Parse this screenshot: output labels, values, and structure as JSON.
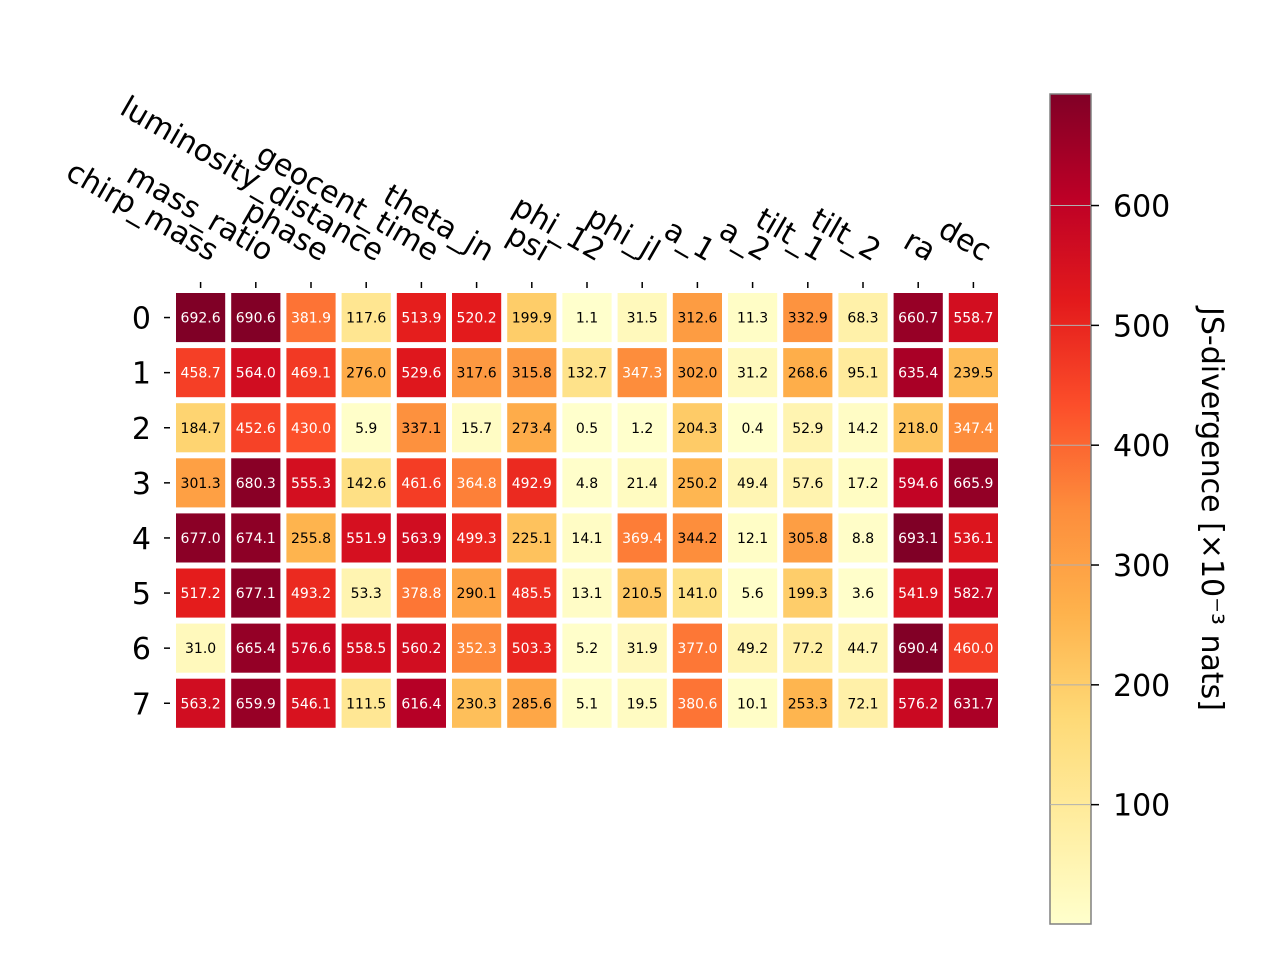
{
  "chart_data": {
    "type": "heatmap",
    "title": "",
    "xlabel": "",
    "ylabel": "",
    "x_labels": [
      "chirp_mass",
      "mass_ratio",
      "phase",
      "luminosity_distance",
      "geocent_time",
      "theta_jn",
      "psi",
      "phi_12",
      "phi_jl",
      "a_1",
      "a_2",
      "tilt_1",
      "tilt_2",
      "ra",
      "dec"
    ],
    "y_labels": [
      "0",
      "1",
      "2",
      "3",
      "4",
      "5",
      "6",
      "7"
    ],
    "values": [
      [
        692.6,
        690.6,
        381.9,
        117.6,
        513.9,
        520.2,
        199.9,
        1.1,
        31.5,
        312.6,
        11.3,
        332.9,
        68.3,
        660.7,
        558.7
      ],
      [
        458.7,
        564.0,
        469.1,
        276.0,
        529.6,
        317.6,
        315.8,
        132.7,
        347.3,
        302.0,
        31.2,
        268.6,
        95.1,
        635.4,
        239.5
      ],
      [
        184.7,
        452.6,
        430.0,
        5.9,
        337.1,
        15.7,
        273.4,
        0.5,
        1.2,
        204.3,
        0.4,
        52.9,
        14.2,
        218.0,
        347.4
      ],
      [
        301.3,
        680.3,
        555.3,
        142.6,
        461.6,
        364.8,
        492.9,
        4.8,
        21.4,
        250.2,
        49.4,
        57.6,
        17.2,
        594.6,
        665.9
      ],
      [
        677.0,
        674.1,
        255.8,
        551.9,
        563.9,
        499.3,
        225.1,
        14.1,
        369.4,
        344.2,
        12.1,
        305.8,
        8.8,
        693.1,
        536.1
      ],
      [
        517.2,
        677.1,
        493.2,
        53.3,
        378.8,
        290.1,
        485.5,
        13.1,
        210.5,
        141.0,
        5.6,
        199.3,
        3.6,
        541.9,
        582.7
      ],
      [
        31.0,
        665.4,
        576.6,
        558.5,
        560.2,
        352.3,
        503.3,
        5.2,
        31.9,
        377.0,
        49.2,
        77.2,
        44.7,
        690.4,
        460.0
      ],
      [
        563.2,
        659.9,
        546.1,
        111.5,
        616.4,
        230.3,
        285.6,
        5.1,
        19.5,
        380.6,
        10.1,
        253.3,
        72.1,
        576.2,
        631.7
      ]
    ],
    "colormap": "YlOrRd",
    "vmin": 0.4,
    "vmax": 693.1,
    "colorbar": {
      "label": "JS-divergence [×10⁻³ nats]",
      "ticks": [
        100,
        200,
        300,
        400,
        500,
        600
      ]
    }
  }
}
